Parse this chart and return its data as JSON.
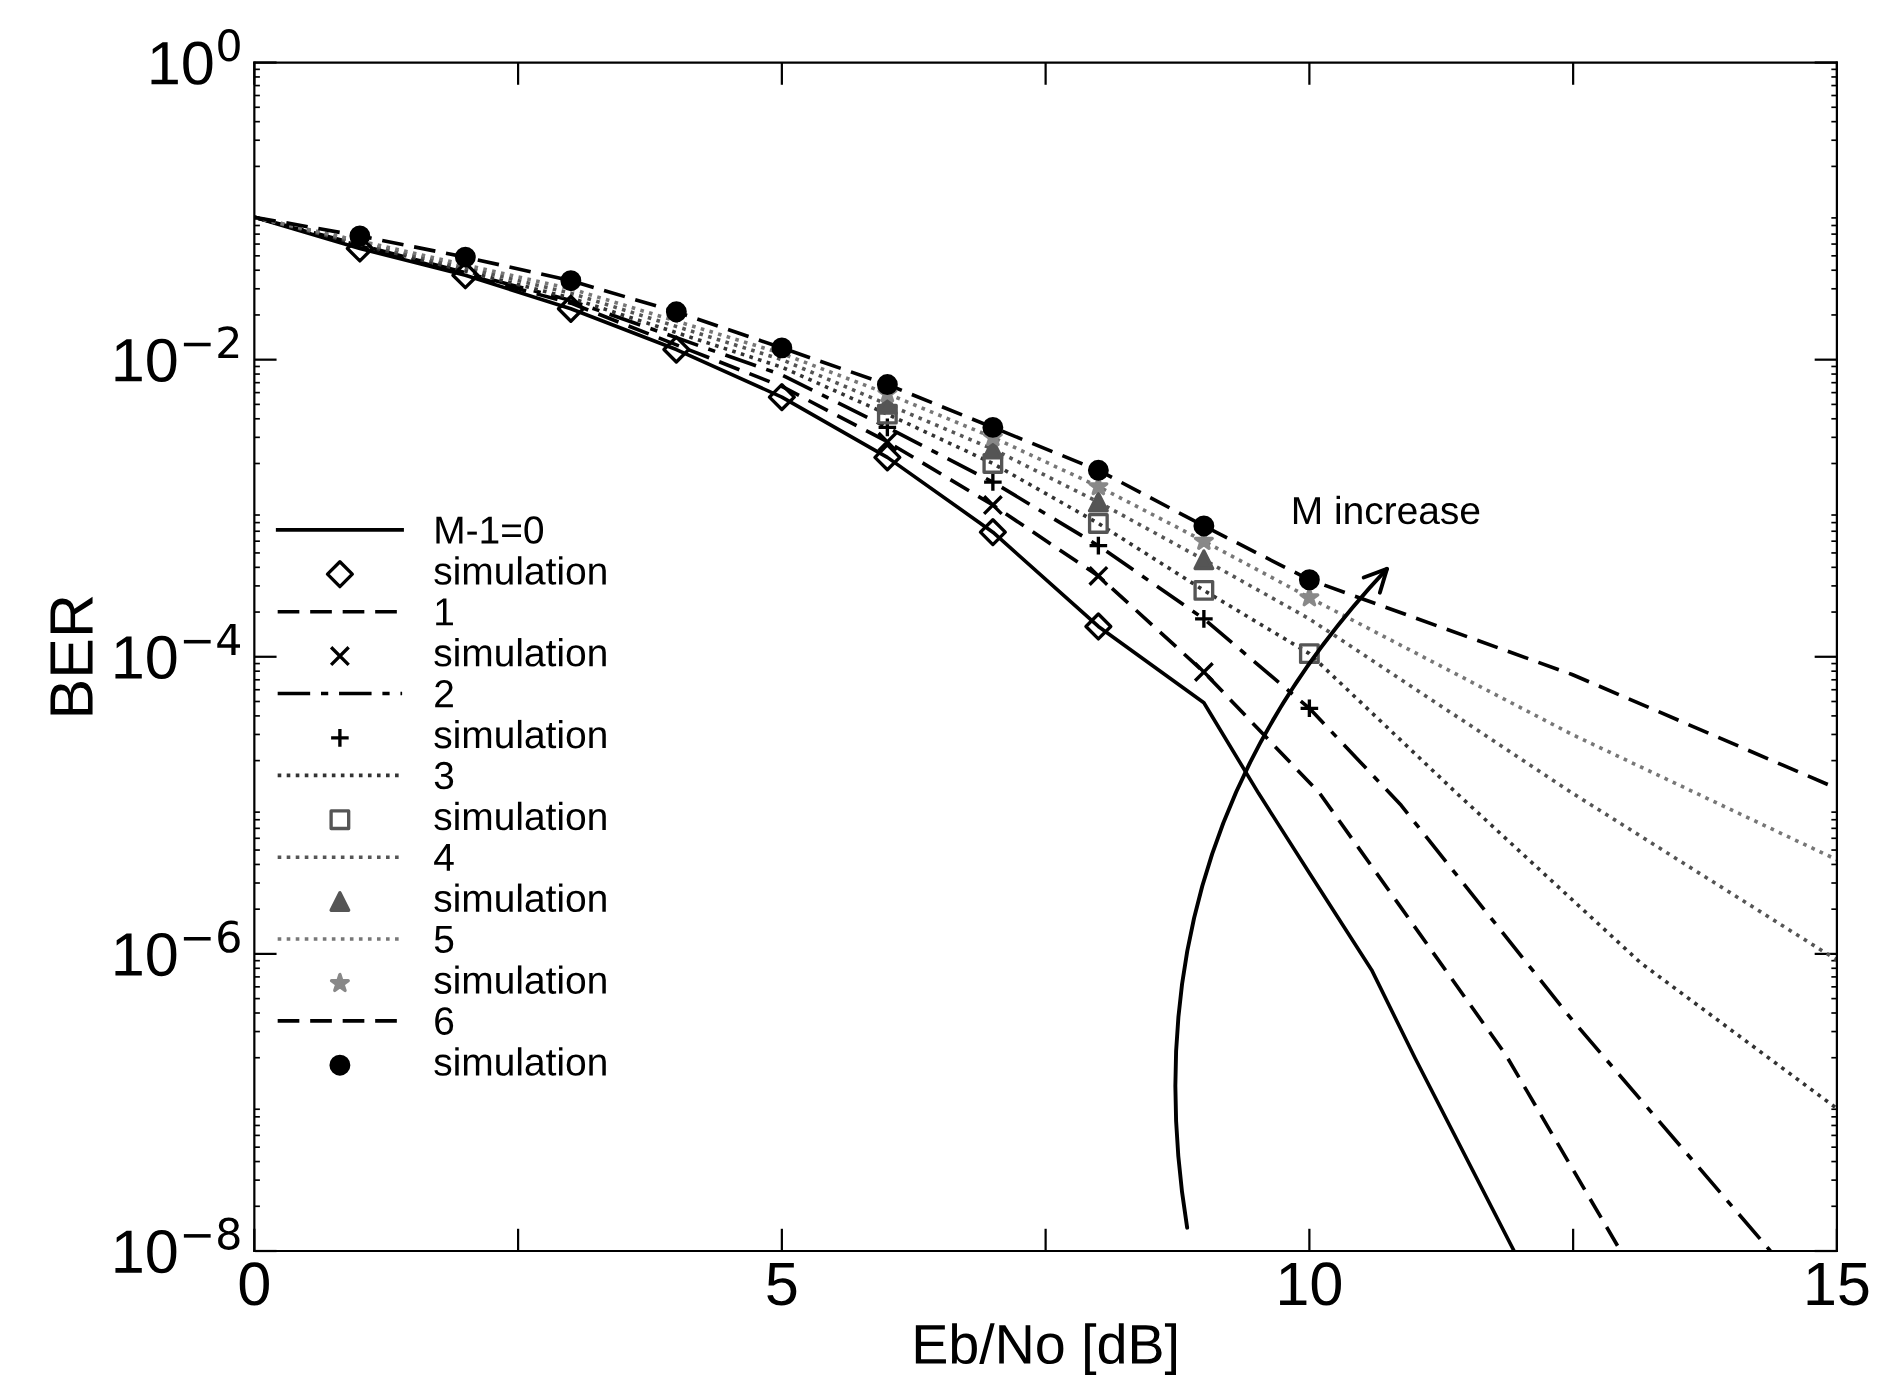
{
  "chart_data": {
    "type": "line",
    "xlabel": "Eb/No [dB]",
    "ylabel": "BER",
    "log": "y",
    "grid": false,
    "legend": "left",
    "xlim": [
      0,
      15
    ],
    "xticks": [
      0,
      {
        "value": 2.5,
        "label": null
      },
      5,
      {
        "value": 7.5,
        "label": null
      },
      10,
      {
        "value": 12.5,
        "label": null
      },
      15
    ],
    "ylim": [
      1e-08,
      1
    ],
    "yticks": [
      {
        "value": 1e-08,
        "label": "10$^{−8}$"
      },
      {
        "value": 1e-06,
        "label": "10$^{−6}$"
      },
      {
        "value": 0.0001,
        "label": "10$^{−4}$"
      },
      {
        "value": 0.01,
        "label": "10$^{−2}$"
      },
      {
        "value": 1,
        "label": "10$^{0}$"
      }
    ],
    "annotations": [
      "M increase"
    ],
    "series": [
      {
        "name": "M-1=0",
        "type": "line",
        "color": "#000000",
        "line_style": "solid",
        "marker": "none",
        "x": [
          0,
          1,
          2,
          3,
          4,
          5,
          6,
          7,
          8,
          9,
          9.52,
          10,
          10.59,
          11,
          11.94
        ],
        "values": [
          0.091,
          0.056,
          0.037,
          0.022,
          0.0117,
          0.0056,
          0.0022,
          0.00069,
          0.00016,
          4.9e-05,
          1.2e-05,
          3.5e-06,
          7.8e-07,
          2e-07,
          1e-08
        ]
      },
      {
        "name": "simulation",
        "type": "scatter",
        "color": "#000000",
        "marker": "diamond",
        "x": [
          1,
          2,
          3,
          4,
          5,
          6,
          7,
          8
        ],
        "values": [
          0.056,
          0.037,
          0.022,
          0.0117,
          0.0056,
          0.0022,
          0.00069,
          0.00016
        ]
      },
      {
        "name": "1",
        "type": "line",
        "color": "#000000",
        "line_style": "dashed",
        "marker": "none",
        "x": [
          0,
          3,
          5,
          6,
          7,
          8,
          9,
          10.1,
          11.86,
          12.95
        ],
        "values": [
          0.091,
          0.024,
          0.0066,
          0.0028,
          0.00105,
          0.00035,
          7.9e-05,
          1.2e-05,
          2.1e-07,
          1e-08
        ]
      },
      {
        "name": "simulation",
        "type": "scatter",
        "color": "#000000",
        "marker": "cross",
        "x": [
          6,
          7,
          8,
          9
        ],
        "values": [
          0.0028,
          0.00105,
          0.00035,
          7.9e-05
        ]
      },
      {
        "name": "2",
        "type": "line",
        "color": "#000000",
        "line_style": "dashdot",
        "marker": "none",
        "x": [
          0,
          3,
          5,
          6,
          7,
          8,
          9,
          10,
          10.87,
          12.49,
          14.37
        ],
        "values": [
          0.091,
          0.025,
          0.0079,
          0.0035,
          0.0015,
          0.00056,
          0.00018,
          4.5e-05,
          1e-05,
          3.6e-07,
          1e-08
        ]
      },
      {
        "name": "simulation",
        "type": "scatter",
        "color": "#000000",
        "marker": "plus",
        "x": [
          6,
          7,
          8,
          9,
          10
        ],
        "values": [
          0.0035,
          0.0015,
          0.00056,
          0.00018,
          4.5e-05
        ]
      },
      {
        "name": "3",
        "type": "line",
        "color": "#333333",
        "line_style": "dotted",
        "marker": "none",
        "x": [
          0,
          3,
          5,
          6,
          7,
          8,
          9,
          10,
          11.4,
          13.14,
          15
        ],
        "values": [
          0.091,
          0.026,
          0.0089,
          0.0043,
          0.002,
          0.00079,
          0.00028,
          0.000105,
          1.2e-05,
          8.7e-07,
          9.1e-08
        ]
      },
      {
        "name": "simulation",
        "type": "scatter",
        "color": "#555555",
        "marker": "square",
        "x": [
          6,
          7,
          8,
          9,
          10
        ],
        "values": [
          0.0043,
          0.002,
          0.00079,
          0.00028,
          0.000105
        ]
      },
      {
        "name": "4",
        "type": "line",
        "color": "#555555",
        "line_style": "dotted",
        "marker": "none",
        "x": [
          0,
          3,
          5,
          6,
          7,
          8,
          9,
          10,
          12.5,
          15
        ],
        "values": [
          0.091,
          0.028,
          0.01,
          0.005,
          0.0025,
          0.0011,
          0.00045,
          0.00018,
          1.2e-05,
          9.1e-07
        ]
      },
      {
        "name": "simulation",
        "type": "scatter",
        "color": "#555555",
        "marker": "triangle",
        "x": [
          6,
          7,
          8,
          9
        ],
        "values": [
          0.005,
          0.0025,
          0.0011,
          0.00045
        ]
      },
      {
        "name": "5",
        "type": "line",
        "color": "#777777",
        "line_style": "dotted",
        "marker": "none",
        "x": [
          0,
          3,
          5,
          6,
          7,
          8,
          9,
          10,
          12.49,
          15
        ],
        "values": [
          0.091,
          0.03,
          0.011,
          0.0059,
          0.003,
          0.0014,
          0.0006,
          0.00025,
          3e-05,
          4.3e-06
        ]
      },
      {
        "name": "simulation",
        "type": "scatter",
        "color": "#888888",
        "marker": "star",
        "x": [
          6,
          7,
          8,
          9,
          10
        ],
        "values": [
          0.0059,
          0.003,
          0.0014,
          0.0006,
          0.00025
        ]
      },
      {
        "name": "6",
        "type": "line",
        "color": "#000000",
        "line_style": "dashed",
        "marker": "none",
        "x": [
          0,
          1,
          2,
          3,
          4,
          5,
          6,
          7,
          8,
          9,
          10,
          12.49,
          15
        ],
        "values": [
          0.091,
          0.068,
          0.049,
          0.034,
          0.021,
          0.012,
          0.0068,
          0.0035,
          0.0018,
          0.00076,
          0.00033,
          7.6e-05,
          1.3e-05
        ]
      },
      {
        "name": "simulation",
        "type": "scatter",
        "color": "#000000",
        "marker": "circle",
        "x": [
          1,
          2,
          3,
          4,
          5,
          6,
          7,
          8,
          9,
          10
        ],
        "values": [
          0.068,
          0.049,
          0.034,
          0.021,
          0.012,
          0.0068,
          0.0035,
          0.0018,
          0.00076,
          0.00033
        ]
      }
    ]
  }
}
